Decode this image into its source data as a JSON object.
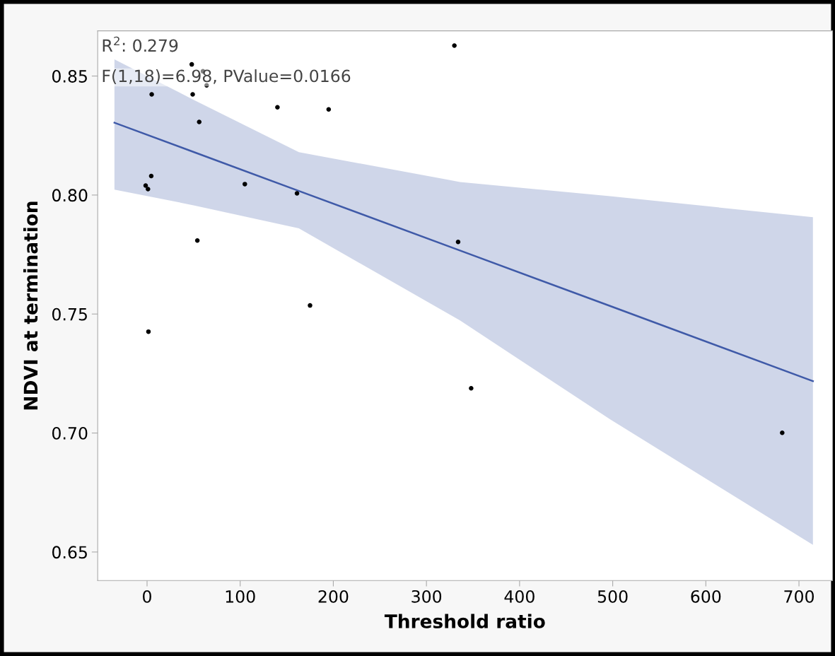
{
  "chart_data": {
    "type": "scatter",
    "xlabel": "Threshold ratio",
    "ylabel": "NDVI at termination",
    "xlim": [
      -53,
      736
    ],
    "ylim": [
      0.638,
      0.869
    ],
    "xticks": [
      0,
      100,
      200,
      300,
      400,
      500,
      600,
      700
    ],
    "yticks": [
      {
        "value": 0.65,
        "label": "0.65"
      },
      {
        "value": 0.7,
        "label": "0.70"
      },
      {
        "value": 0.75,
        "label": "0.75"
      },
      {
        "value": 0.8,
        "label": "0.80"
      },
      {
        "value": 0.85,
        "label": "0.85"
      }
    ],
    "grid": false,
    "annotations": [
      "R$^{2}$: 0.279",
      "F(1,18)=6.98, PValue=0.0166"
    ],
    "series": [
      {
        "marker": "circle",
        "color": "#000000",
        "x": [
          -1.5,
          1,
          4.5,
          1.5,
          56,
          54,
          105,
          140,
          161,
          175,
          195,
          330,
          334,
          348,
          682,
          48,
          60,
          5,
          49,
          64
        ],
        "values": [
          0.804,
          0.8025,
          0.808,
          0.7426,
          0.8307,
          0.7809,
          0.8046,
          0.8369,
          0.8007,
          0.7536,
          0.836,
          0.8628,
          0.7803,
          0.7188,
          0.7001,
          0.8549,
          0.852,
          0.8423,
          0.8423,
          0.8461
        ]
      },
      {
        "type": "line",
        "color": "#3f5aa8",
        "x": [
          -35,
          50,
          163,
          336,
          497,
          715
        ],
        "values": [
          0.8304,
          0.8181,
          0.8017,
          0.7767,
          0.7534,
          0.7218
        ],
        "lower": [
          0.8023,
          0.7957,
          0.786,
          0.7473,
          0.7058,
          0.653
        ],
        "upper": [
          0.857,
          0.84,
          0.818,
          0.8055,
          0.7995,
          0.7907
        ]
      }
    ]
  }
}
